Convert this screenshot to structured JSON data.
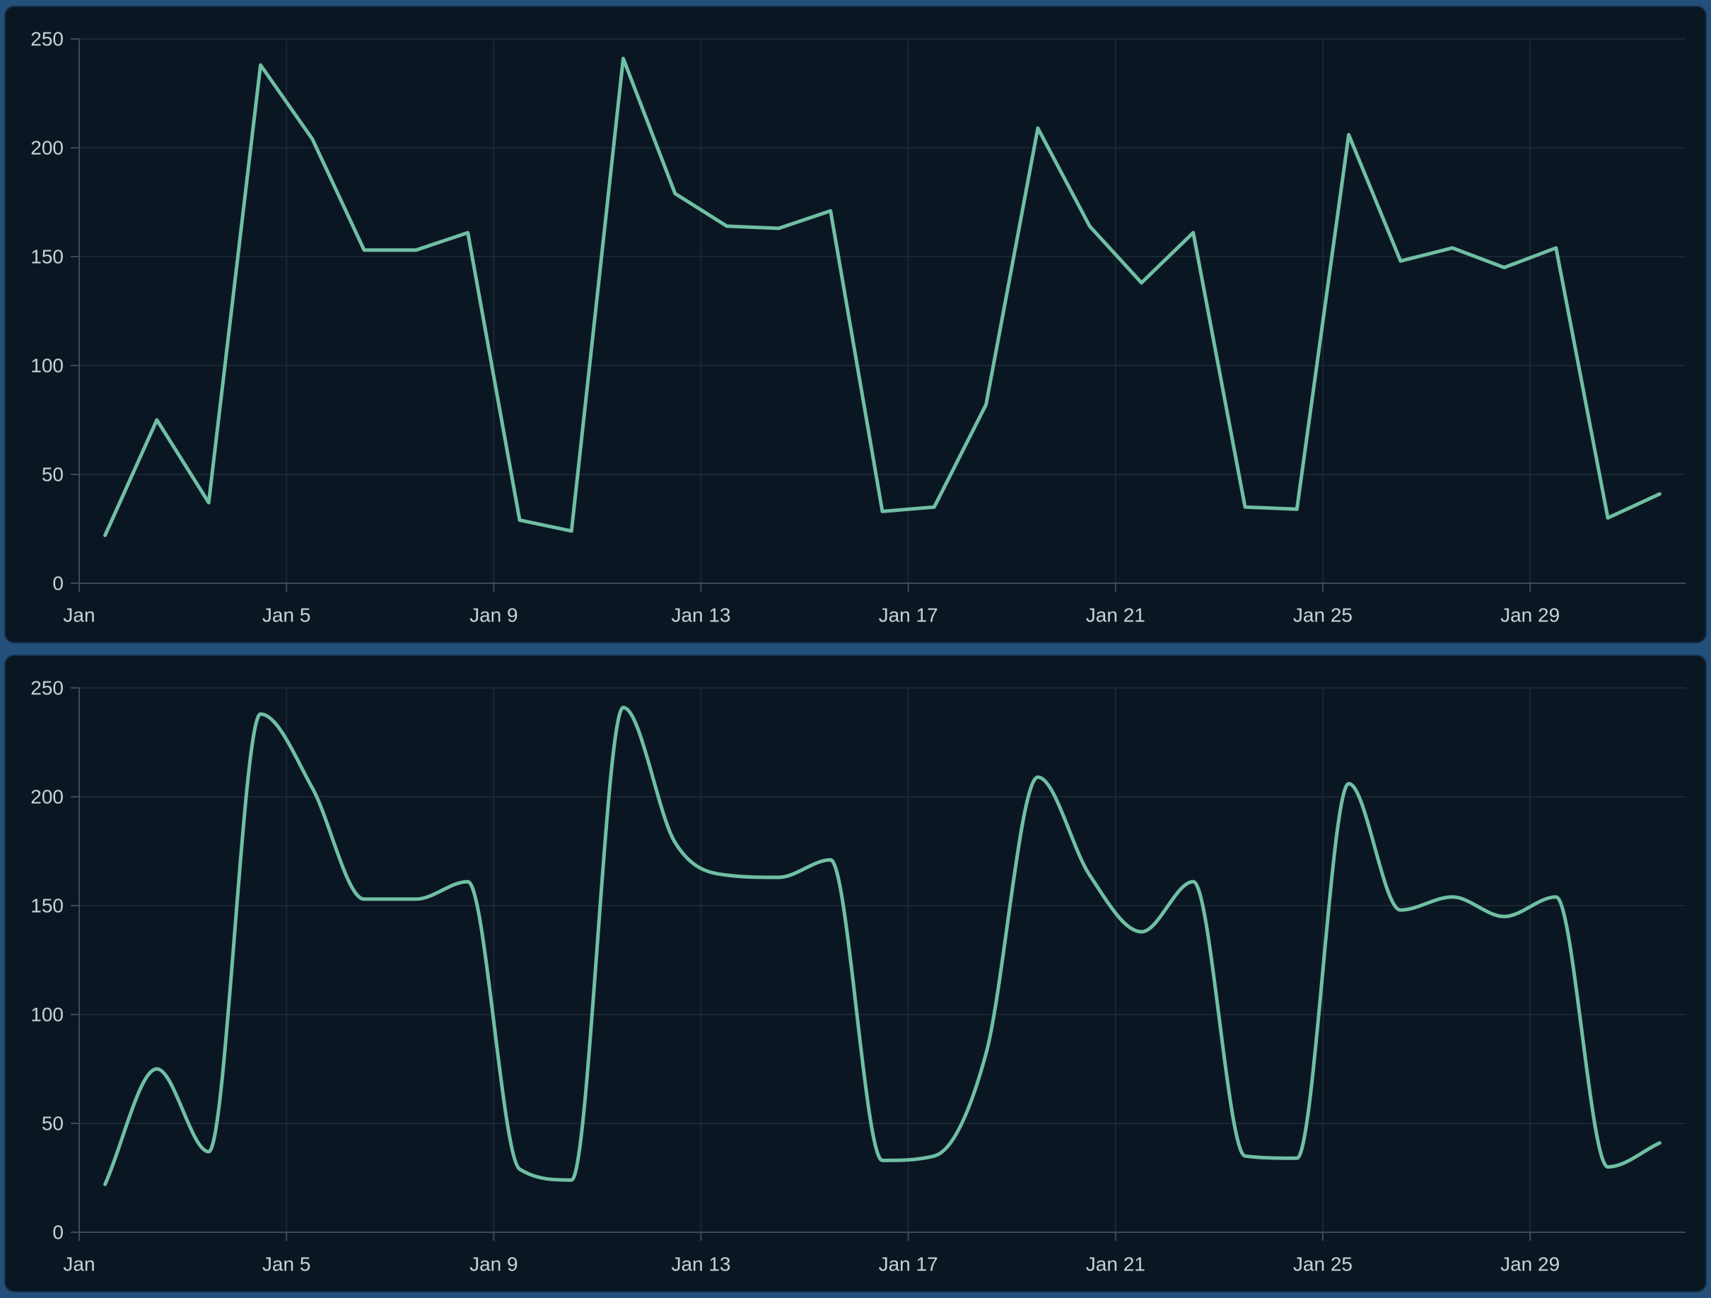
{
  "style": {
    "page_background": "#23507a",
    "panel_background": "#0a1723",
    "line_color": "#70bfa4",
    "grid_color": "#1a2733",
    "axis_color": "#3d4b58",
    "label_color": "#c9d1d8"
  },
  "chart_data": [
    {
      "type": "line",
      "title": "",
      "legend": "none",
      "grid": true,
      "smooth": false,
      "line_style": "linear",
      "x": [
        "Jan 1",
        "Jan 2",
        "Jan 3",
        "Jan 4",
        "Jan 5",
        "Jan 6",
        "Jan 7",
        "Jan 8",
        "Jan 9",
        "Jan 10",
        "Jan 11",
        "Jan 12",
        "Jan 13",
        "Jan 14",
        "Jan 15",
        "Jan 16",
        "Jan 17",
        "Jan 18",
        "Jan 19",
        "Jan 20",
        "Jan 21",
        "Jan 22",
        "Jan 23",
        "Jan 24",
        "Jan 25",
        "Jan 26",
        "Jan 27",
        "Jan 28",
        "Jan 29",
        "Jan 30",
        "Jan 31"
      ],
      "values": [
        22,
        75,
        37,
        238,
        204,
        153,
        153,
        161,
        29,
        24,
        241,
        179,
        164,
        163,
        171,
        33,
        35,
        82,
        209,
        164,
        138,
        161,
        35,
        34,
        206,
        148,
        154,
        145,
        154,
        30,
        41
      ],
      "x_tick_labels": [
        "Jan",
        "Jan 5",
        "Jan 9",
        "Jan 13",
        "Jan 17",
        "Jan 21",
        "Jan 25",
        "Jan 29"
      ],
      "x_tick_indices": [
        0,
        4,
        8,
        12,
        16,
        20,
        24,
        28
      ],
      "y_ticks": [
        0,
        50,
        100,
        150,
        200,
        250
      ],
      "ylim": [
        0,
        250
      ],
      "xlabel": "",
      "ylabel": ""
    },
    {
      "type": "line",
      "title": "",
      "legend": "none",
      "grid": true,
      "smooth": true,
      "line_style": "monotone-spline",
      "x": [
        "Jan 1",
        "Jan 2",
        "Jan 3",
        "Jan 4",
        "Jan 5",
        "Jan 6",
        "Jan 7",
        "Jan 8",
        "Jan 9",
        "Jan 10",
        "Jan 11",
        "Jan 12",
        "Jan 13",
        "Jan 14",
        "Jan 15",
        "Jan 16",
        "Jan 17",
        "Jan 18",
        "Jan 19",
        "Jan 20",
        "Jan 21",
        "Jan 22",
        "Jan 23",
        "Jan 24",
        "Jan 25",
        "Jan 26",
        "Jan 27",
        "Jan 28",
        "Jan 29",
        "Jan 30",
        "Jan 31"
      ],
      "values": [
        22,
        75,
        37,
        238,
        204,
        153,
        153,
        161,
        29,
        24,
        241,
        179,
        164,
        163,
        171,
        33,
        35,
        82,
        209,
        164,
        138,
        161,
        35,
        34,
        206,
        148,
        154,
        145,
        154,
        30,
        41
      ],
      "x_tick_labels": [
        "Jan",
        "Jan 5",
        "Jan 9",
        "Jan 13",
        "Jan 17",
        "Jan 21",
        "Jan 25",
        "Jan 29"
      ],
      "x_tick_indices": [
        0,
        4,
        8,
        12,
        16,
        20,
        24,
        28
      ],
      "y_ticks": [
        0,
        50,
        100,
        150,
        200,
        250
      ],
      "ylim": [
        0,
        250
      ],
      "xlabel": "",
      "ylabel": ""
    }
  ]
}
